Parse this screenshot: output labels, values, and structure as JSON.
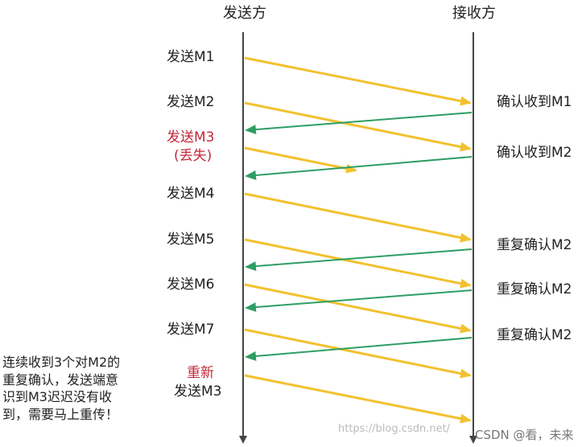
{
  "headers": {
    "sender": "发送方",
    "receiver": "接收方"
  },
  "sender_labels": [
    {
      "text": "发送M1",
      "highlight": false
    },
    {
      "text": "发送M2",
      "highlight": false
    },
    {
      "text": "发送M3",
      "highlight": true
    },
    {
      "text": "(丢失)",
      "highlight": true
    },
    {
      "text": "发送M4",
      "highlight": false
    },
    {
      "text": "发送M5",
      "highlight": false
    },
    {
      "text": "发送M6",
      "highlight": false
    },
    {
      "text": "发送M7",
      "highlight": false
    },
    {
      "text": "重新",
      "highlight": true
    },
    {
      "text": "发送M3",
      "highlight": false
    }
  ],
  "receiver_labels": [
    "确认收到M1",
    "确认收到M2",
    "重复确认M2",
    "重复确认M2",
    "重复确认M2"
  ],
  "note": "连续收到3个对M2的\n重复确认，发送端意\n识到M3迟迟没有收\n到，需要马上重传！",
  "watermark": {
    "text": "https://blog.csdn.net/",
    "csdn": "CSDN @看，未来"
  },
  "colors": {
    "data_arrow": "#f2c12e",
    "ack_arrow": "#2e9e63",
    "timeline": "#444444",
    "highlight_text": "#c22838"
  }
}
